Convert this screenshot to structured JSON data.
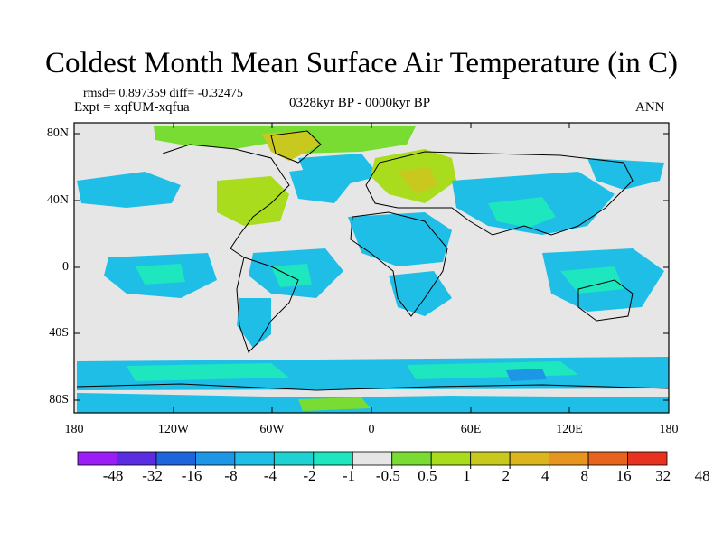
{
  "title": "Coldest Month Mean Surface Air Temperature (in C)",
  "stats": "rmsd= 0.897359  diff= -0.32475",
  "experiment": "Expt = xqfUM-xqfua",
  "period": "0328kyr BP - 0000kyr BP",
  "season": "ANN",
  "axes": {
    "lat_labels": [
      "80N",
      "40N",
      "0",
      "40S",
      "80S"
    ],
    "lon_labels": [
      "180",
      "120W",
      "60W",
      "0",
      "60E",
      "120E",
      "180"
    ]
  },
  "colorbar": {
    "colors": [
      "#9a1ef5",
      "#5a2de0",
      "#1e64dc",
      "#1e96e6",
      "#1ebee6",
      "#1ed2d2",
      "#1ee6be",
      "#e6e6e6",
      "#78dc32",
      "#aadc1e",
      "#c8c81e",
      "#dcb41e",
      "#e6961e",
      "#e6641e",
      "#e6321e"
    ],
    "labels": [
      "-48",
      "-32",
      "-16",
      "-8",
      "-4",
      "-2",
      "-1",
      "-0.5",
      "0.5",
      "1",
      "2",
      "4",
      "8",
      "16",
      "32",
      "48"
    ]
  },
  "map_colors": {
    "background": "#e6e6e6",
    "cyan": "#1ebee6",
    "teal": "#1ee6be",
    "light_green": "#78dc32",
    "yellow_green": "#aadc1e",
    "olive": "#c8c81e",
    "blue": "#1e96e6"
  }
}
